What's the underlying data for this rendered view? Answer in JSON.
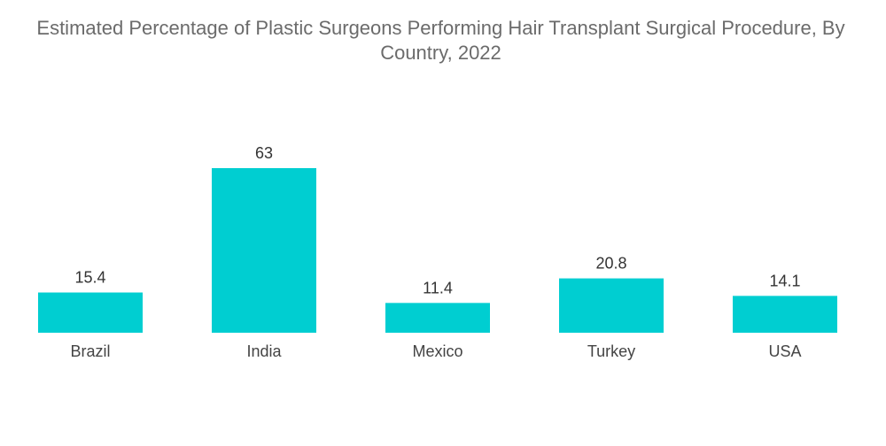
{
  "chart_data": {
    "type": "bar",
    "title": "Estimated Percentage of Plastic Surgeons Performing Hair Transplant Surgical Procedure, By Country, 2022",
    "categories": [
      "Brazil",
      "India",
      "Mexico",
      "Turkey",
      "USA"
    ],
    "values": [
      15.4,
      63,
      11.4,
      20.8,
      14.1
    ],
    "value_labels": [
      "15.4",
      "63",
      "11.4",
      "20.8",
      "14.1"
    ],
    "xlabel": "",
    "ylabel": "",
    "ylim": [
      0,
      63
    ],
    "grid": false,
    "y_axis_shown": false,
    "bar_color": "#00CED1"
  }
}
